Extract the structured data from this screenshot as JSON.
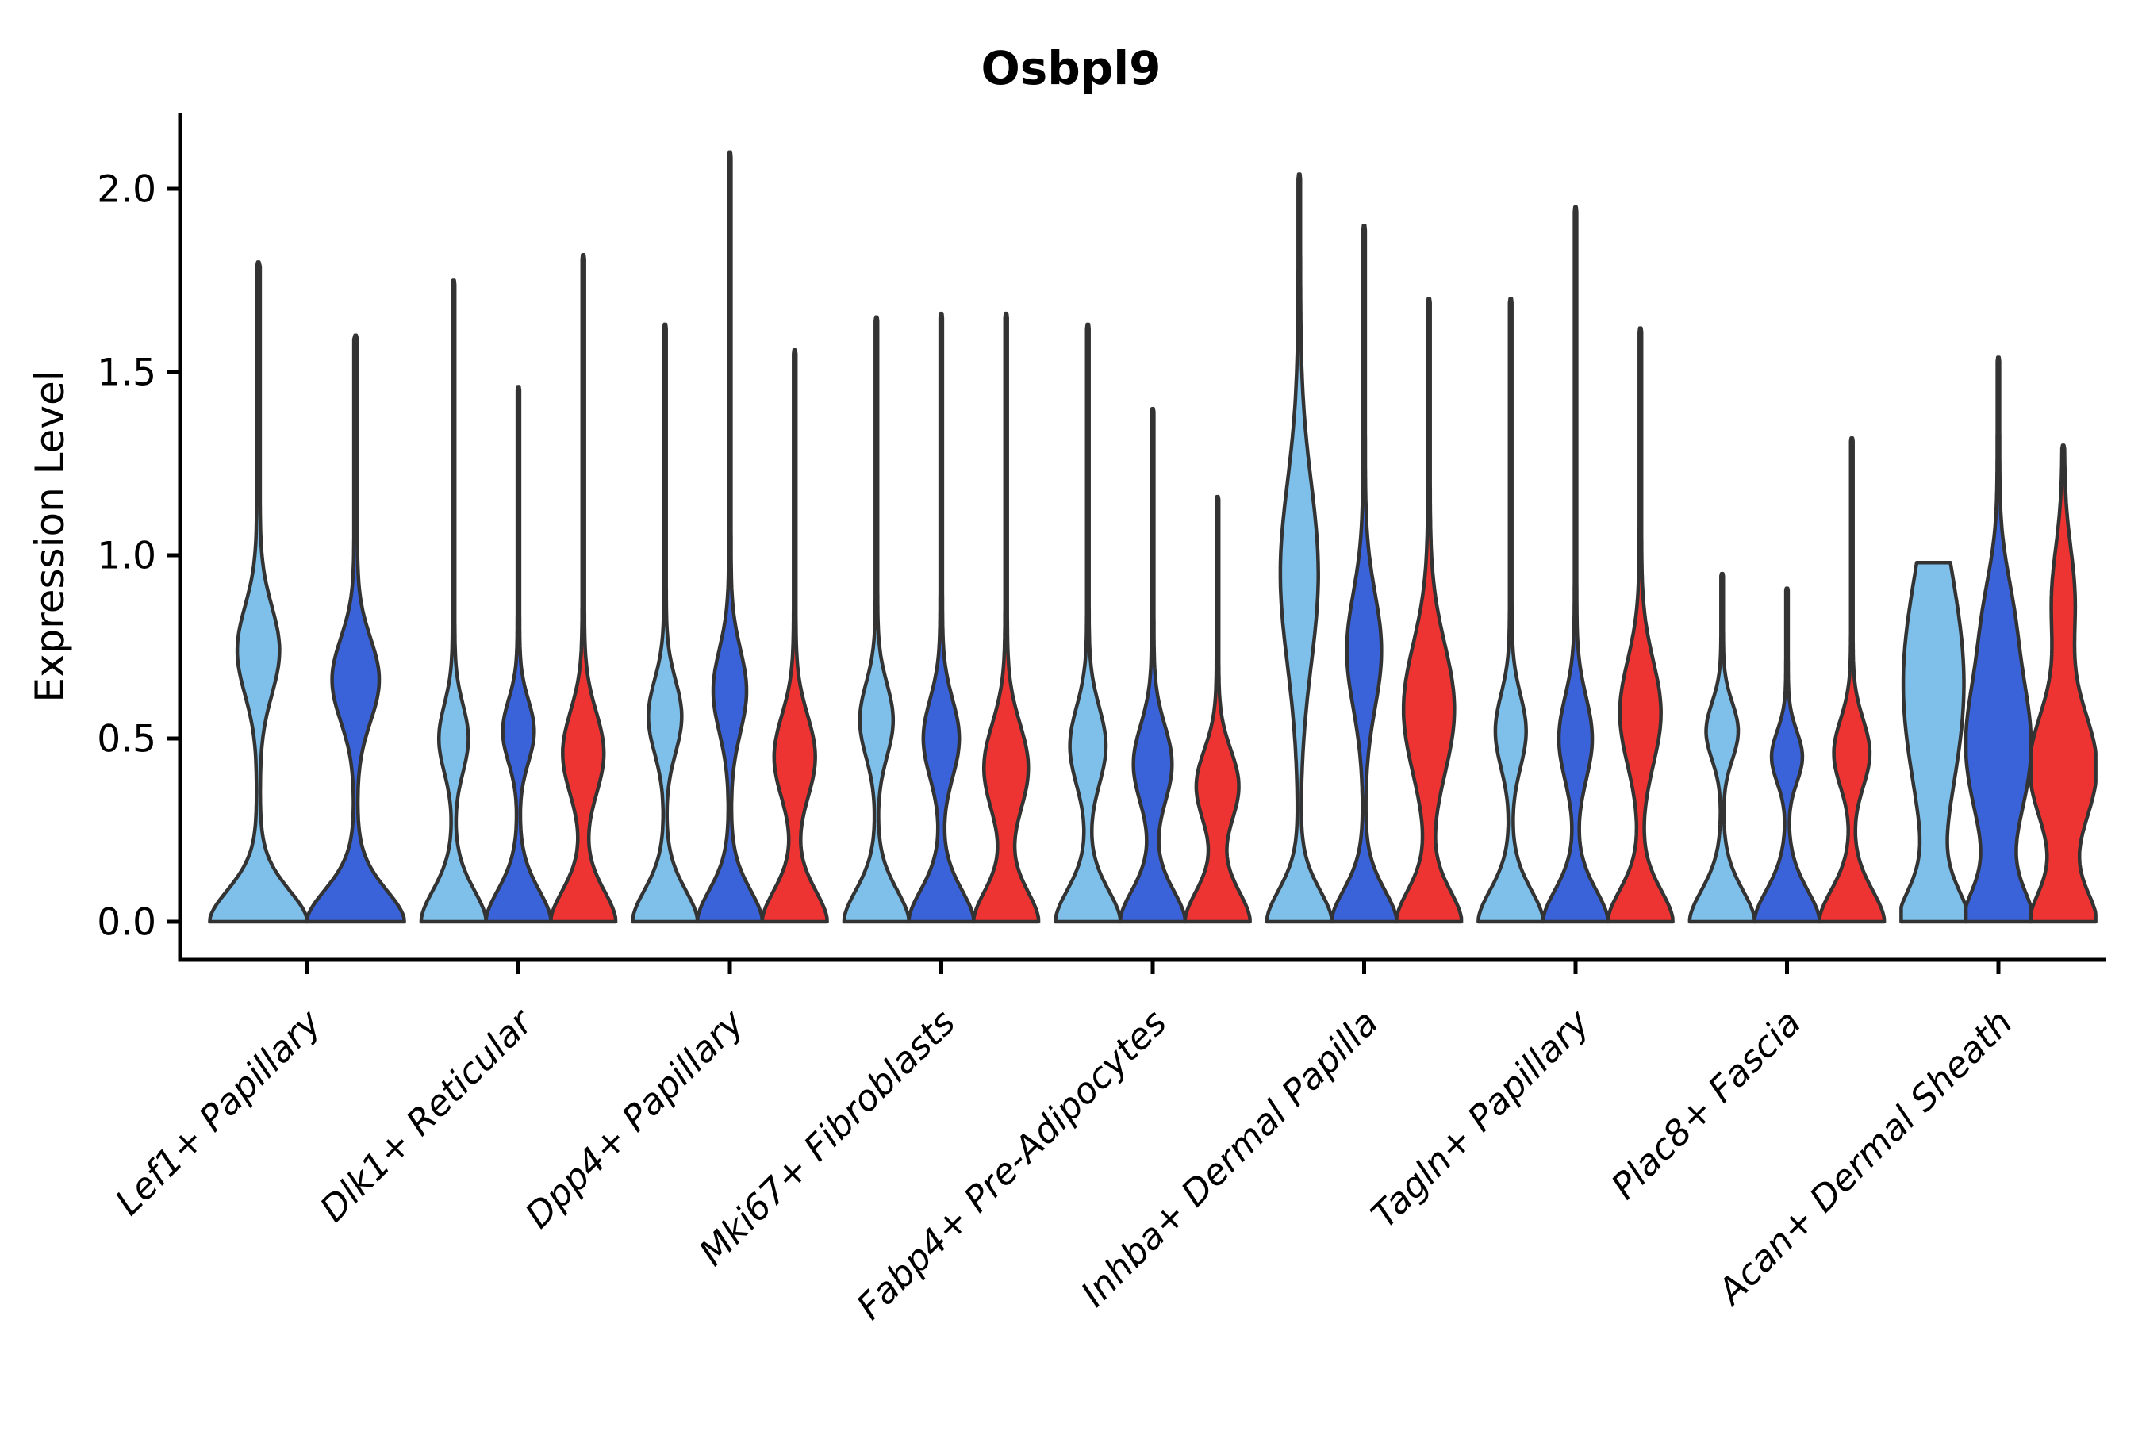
{
  "chart_data": {
    "type": "violin",
    "title": "Osbpl9",
    "ylabel": "Expression Level",
    "xlabel": "",
    "ylim": [
      0,
      2.2
    ],
    "yticks": [
      "0.0",
      "0.5",
      "1.0",
      "1.5",
      "2.0"
    ],
    "ytick_values": [
      0.0,
      0.5,
      1.0,
      1.5,
      2.0
    ],
    "grid": false,
    "legend_position": "none",
    "background": "#FFFFFF",
    "axis_color": "#000000",
    "edge_color": "#333333",
    "series": [
      {
        "name": "condition-lightblue",
        "color": "#7EC0EA"
      },
      {
        "name": "condition-darkblue",
        "color": "#3A63D9"
      },
      {
        "name": "condition-red",
        "color": "#EE3432"
      }
    ],
    "categories": [
      "Lef1+ Papillary",
      "Dlk1+ Reticular",
      "Dpp4+ Papillary",
      "Mki67+ Fibroblasts",
      "Fabp4+ Pre-Adipocytes",
      "Inhba+ Dermal Papilla",
      "Tagln+ Papillary",
      "Plac8+ Fascia",
      "Acan+ Dermal Sheath"
    ],
    "groups": [
      {
        "violins": [
          {
            "series": 0,
            "max": 1.8,
            "bc": 0.74,
            "bs": 0.17,
            "bw": 0.4
          },
          {
            "series": 1,
            "max": 1.6,
            "bc": 0.66,
            "bs": 0.16,
            "bw": 0.45
          }
        ]
      },
      {
        "violins": [
          {
            "series": 0,
            "max": 1.75,
            "bc": 0.5,
            "bs": 0.13,
            "bw": 0.42
          },
          {
            "series": 1,
            "max": 1.46,
            "bc": 0.52,
            "bs": 0.12,
            "bw": 0.45
          },
          {
            "series": 2,
            "max": 1.82,
            "bc": 0.46,
            "bs": 0.16,
            "bw": 0.6
          }
        ]
      },
      {
        "violins": [
          {
            "series": 0,
            "max": 1.63,
            "bc": 0.56,
            "bs": 0.14,
            "bw": 0.48
          },
          {
            "series": 1,
            "max": 2.1,
            "bc": 0.63,
            "bs": 0.16,
            "bw": 0.48
          },
          {
            "series": 2,
            "max": 1.56,
            "bc": 0.45,
            "bs": 0.16,
            "bw": 0.6
          }
        ]
      },
      {
        "violins": [
          {
            "series": 0,
            "max": 1.65,
            "bc": 0.55,
            "bs": 0.14,
            "bw": 0.48
          },
          {
            "series": 1,
            "max": 1.66,
            "bc": 0.5,
            "bs": 0.15,
            "bw": 0.52
          },
          {
            "series": 2,
            "max": 1.66,
            "bc": 0.42,
            "bs": 0.17,
            "bw": 0.65
          }
        ]
      },
      {
        "violins": [
          {
            "series": 0,
            "max": 1.63,
            "bc": 0.48,
            "bs": 0.15,
            "bw": 0.52
          },
          {
            "series": 1,
            "max": 1.4,
            "bc": 0.43,
            "bs": 0.15,
            "bw": 0.56
          },
          {
            "series": 2,
            "max": 1.16,
            "bc": 0.37,
            "bs": 0.14,
            "bw": 0.62
          }
        ]
      },
      {
        "violins": [
          {
            "series": 0,
            "max": 2.04,
            "bc": 0.95,
            "bs": 0.35,
            "bw": 0.55
          },
          {
            "series": 1,
            "max": 1.9,
            "bc": 0.74,
            "bs": 0.22,
            "bw": 0.5
          },
          {
            "series": 2,
            "max": 1.7,
            "bc": 0.58,
            "bs": 0.25,
            "bw": 0.75
          }
        ]
      },
      {
        "violins": [
          {
            "series": 0,
            "max": 1.7,
            "bc": 0.52,
            "bs": 0.14,
            "bw": 0.44
          },
          {
            "series": 1,
            "max": 1.95,
            "bc": 0.5,
            "bs": 0.16,
            "bw": 0.48
          },
          {
            "series": 2,
            "max": 1.62,
            "bc": 0.57,
            "bs": 0.2,
            "bw": 0.6
          }
        ]
      },
      {
        "violins": [
          {
            "series": 0,
            "max": 0.95,
            "bc": 0.52,
            "bs": 0.11,
            "bw": 0.46
          },
          {
            "series": 1,
            "max": 0.91,
            "bc": 0.45,
            "bs": 0.1,
            "bw": 0.44
          },
          {
            "series": 2,
            "max": 1.32,
            "bc": 0.46,
            "bs": 0.13,
            "bw": 0.52
          }
        ]
      },
      {
        "violins": [
          {
            "series": 0,
            "max": 0.98,
            "bc": 0.65,
            "bs": 0.42,
            "bw": 0.9,
            "cap": true
          },
          {
            "series": 1,
            "max": 1.54,
            "bc": 0.48,
            "bs": 0.3,
            "bw": 0.97,
            "b2": [
              0.85,
              0.18,
              0.25
            ]
          },
          {
            "series": 2,
            "max": 1.3,
            "bc": 0.42,
            "bs": 0.22,
            "bw": 1.0,
            "b2": [
              0.88,
              0.2,
              0.32
            ]
          }
        ]
      }
    ]
  }
}
